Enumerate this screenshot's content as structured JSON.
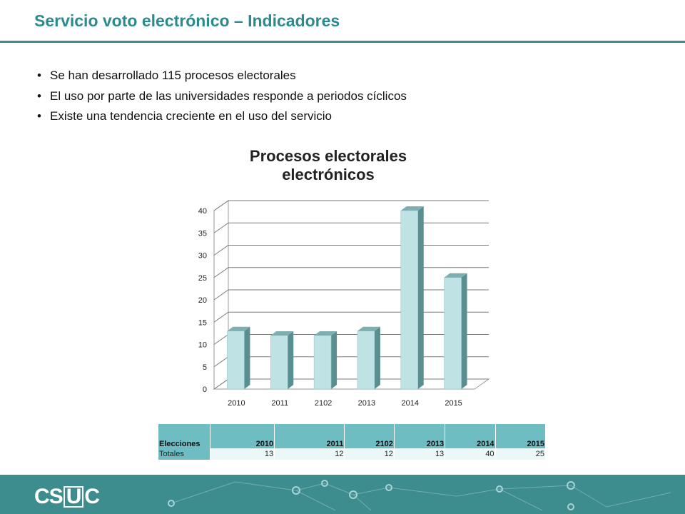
{
  "header": {
    "title": "Servicio voto electrónico – Indicadores"
  },
  "bullets": [
    "Se han desarrollado 115 procesos electorales",
    "El uso por parte de las universidades responde a periodos cíclicos",
    "Existe una tendencia creciente en el uso del servicio"
  ],
  "chart_data": {
    "type": "bar",
    "title_line1": "Procesos electorales",
    "title_line2": "electrónicos",
    "categories": [
      "2010",
      "2011",
      "2102",
      "2013",
      "2014",
      "2015"
    ],
    "values": [
      13,
      12,
      12,
      13,
      40,
      25
    ],
    "ylim": [
      0,
      40
    ],
    "yticks": [
      "0",
      "5",
      "10",
      "15",
      "20",
      "25",
      "30",
      "35",
      "40"
    ],
    "grid": true,
    "style": "3d-cylinder"
  },
  "table": {
    "row1_label": "Elecciones",
    "row2_label": "Totales",
    "years": [
      "2010",
      "2011",
      "2102",
      "2013",
      "2014",
      "2015"
    ],
    "totals": [
      "13",
      "12",
      "12",
      "13",
      "40",
      "25"
    ]
  },
  "footer": {
    "logo_left": "CS",
    "logo_box": "U",
    "logo_right": "C"
  },
  "colors": {
    "accent": "#3d8c8e",
    "title": "#2b8a8f",
    "bar_front": "#bfe3e5",
    "bar_side": "#5a8f92",
    "table_header": "#6dbdc3"
  }
}
